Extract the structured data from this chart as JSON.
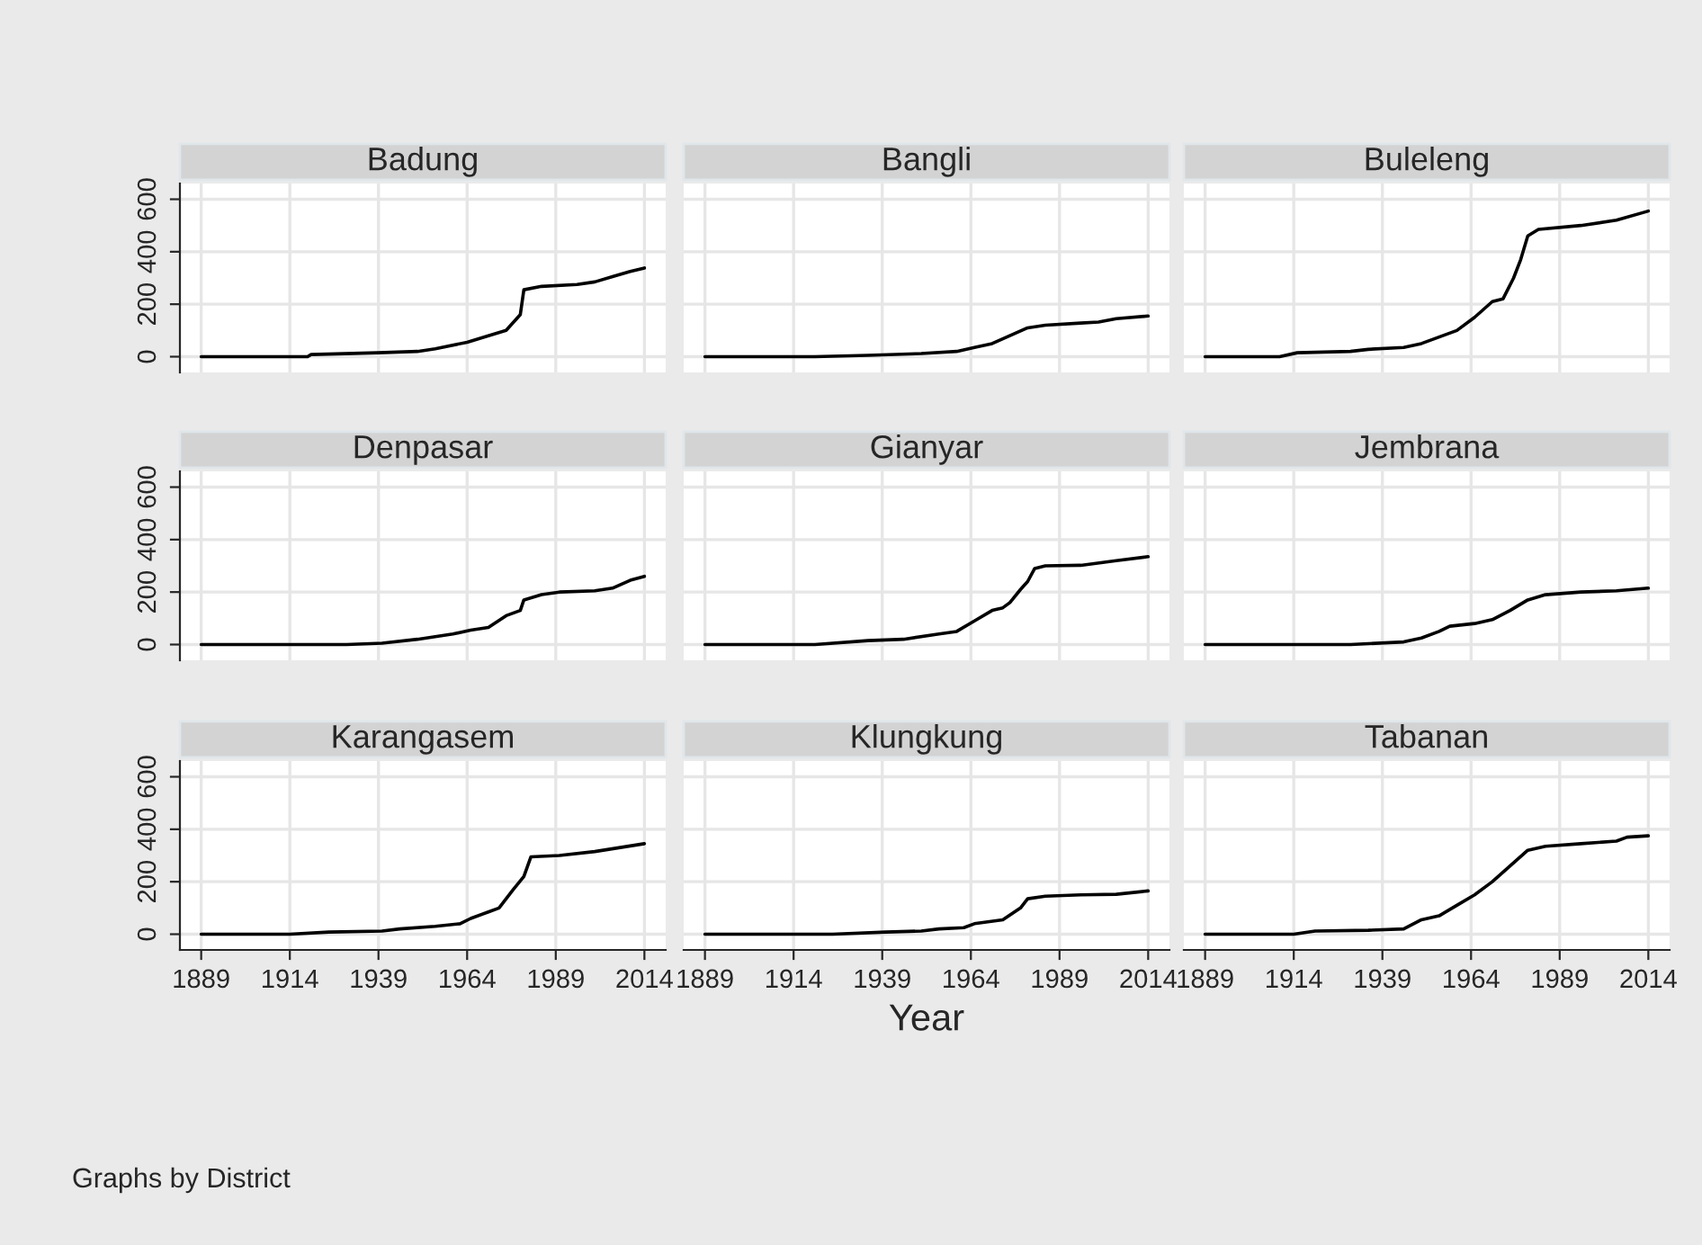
{
  "chart_data": [
    {
      "type": "line",
      "title": "Badung",
      "x": [
        1889,
        1919,
        1920,
        1939,
        1950,
        1955,
        1964,
        1970,
        1975,
        1977,
        1979,
        1980,
        1985,
        1995,
        2000,
        2005,
        2010,
        2014
      ],
      "values": [
        0,
        0,
        8,
        15,
        20,
        30,
        55,
        80,
        100,
        130,
        160,
        255,
        268,
        275,
        285,
        305,
        325,
        338
      ],
      "color": "#000000",
      "xlim": [
        1883,
        2020
      ],
      "ylim": [
        -60,
        660
      ],
      "xticks": [
        1889,
        1914,
        1939,
        1964,
        1989,
        2014
      ],
      "yticks": [
        0,
        200,
        400,
        600
      ],
      "tick_labels": "y",
      "grid": true
    },
    {
      "type": "line",
      "title": "Bangli",
      "x": [
        1889,
        1920,
        1935,
        1950,
        1960,
        1965,
        1970,
        1975,
        1980,
        1985,
        1995,
        2000,
        2005,
        2014
      ],
      "values": [
        0,
        0,
        5,
        12,
        20,
        35,
        50,
        80,
        110,
        120,
        128,
        132,
        145,
        155
      ],
      "color": "#000000",
      "xlim": [
        1883,
        2020
      ],
      "ylim": [
        -60,
        660
      ],
      "xticks": [
        1889,
        1914,
        1939,
        1964,
        1989,
        2014
      ],
      "yticks": [
        0,
        200,
        400,
        600
      ],
      "tick_labels": false,
      "grid": true
    },
    {
      "type": "line",
      "title": "Buleleng",
      "x": [
        1889,
        1910,
        1915,
        1930,
        1935,
        1945,
        1950,
        1955,
        1960,
        1965,
        1970,
        1973,
        1976,
        1978,
        1980,
        1983,
        1995,
        2005,
        2014
      ],
      "values": [
        0,
        0,
        15,
        20,
        28,
        35,
        50,
        75,
        100,
        150,
        210,
        220,
        300,
        370,
        460,
        485,
        500,
        520,
        555
      ],
      "color": "#000000",
      "xlim": [
        1883,
        2020
      ],
      "ylim": [
        -60,
        660
      ],
      "xticks": [
        1889,
        1914,
        1939,
        1964,
        1989,
        2014
      ],
      "yticks": [
        0,
        200,
        400,
        600
      ],
      "tick_labels": false,
      "grid": true
    },
    {
      "type": "line",
      "title": "Denpasar",
      "x": [
        1889,
        1930,
        1940,
        1950,
        1960,
        1965,
        1970,
        1975,
        1979,
        1980,
        1985,
        1990,
        2000,
        2005,
        2010,
        2014
      ],
      "values": [
        0,
        0,
        5,
        20,
        40,
        55,
        65,
        110,
        130,
        170,
        190,
        200,
        205,
        215,
        245,
        260
      ],
      "color": "#000000",
      "xlim": [
        1883,
        2020
      ],
      "ylim": [
        -60,
        660
      ],
      "xticks": [
        1889,
        1914,
        1939,
        1964,
        1989,
        2014
      ],
      "yticks": [
        0,
        200,
        400,
        600
      ],
      "tick_labels": "y",
      "grid": true
    },
    {
      "type": "line",
      "title": "Gianyar",
      "x": [
        1889,
        1920,
        1935,
        1945,
        1955,
        1960,
        1965,
        1970,
        1973,
        1975,
        1978,
        1980,
        1982,
        1985,
        1995,
        2005,
        2014
      ],
      "values": [
        0,
        0,
        15,
        20,
        40,
        50,
        90,
        130,
        140,
        160,
        210,
        240,
        290,
        300,
        302,
        320,
        335
      ],
      "color": "#000000",
      "xlim": [
        1883,
        2020
      ],
      "ylim": [
        -60,
        660
      ],
      "xticks": [
        1889,
        1914,
        1939,
        1964,
        1989,
        2014
      ],
      "yticks": [
        0,
        200,
        400,
        600
      ],
      "tick_labels": false,
      "grid": true
    },
    {
      "type": "line",
      "title": "Jembrana",
      "x": [
        1889,
        1930,
        1945,
        1950,
        1955,
        1958,
        1965,
        1970,
        1975,
        1980,
        1985,
        1995,
        2005,
        2014
      ],
      "values": [
        0,
        0,
        10,
        25,
        50,
        70,
        80,
        95,
        130,
        170,
        190,
        200,
        205,
        215
      ],
      "color": "#000000",
      "xlim": [
        1883,
        2020
      ],
      "ylim": [
        -60,
        660
      ],
      "xticks": [
        1889,
        1914,
        1939,
        1964,
        1989,
        2014
      ],
      "yticks": [
        0,
        200,
        400,
        600
      ],
      "tick_labels": false,
      "grid": true
    },
    {
      "type": "line",
      "title": "Karangasem",
      "x": [
        1889,
        1914,
        1925,
        1940,
        1945,
        1955,
        1962,
        1965,
        1970,
        1973,
        1977,
        1980,
        1982,
        1990,
        2000,
        2014
      ],
      "values": [
        0,
        0,
        8,
        12,
        20,
        30,
        40,
        60,
        85,
        100,
        170,
        220,
        295,
        300,
        315,
        345
      ],
      "color": "#000000",
      "xlim": [
        1883,
        2020
      ],
      "ylim": [
        -60,
        660
      ],
      "xticks": [
        1889,
        1914,
        1939,
        1964,
        1989,
        2014
      ],
      "yticks": [
        0,
        200,
        400,
        600
      ],
      "grid": true,
      "annotations": [
        "Graphs by District"
      ]
    },
    {
      "type": "line",
      "title": "Klungkung",
      "x": [
        1889,
        1925,
        1940,
        1950,
        1955,
        1962,
        1965,
        1973,
        1978,
        1980,
        1985,
        1995,
        2005,
        2014
      ],
      "values": [
        0,
        0,
        8,
        12,
        20,
        25,
        40,
        55,
        100,
        135,
        145,
        150,
        152,
        165
      ],
      "color": "#000000",
      "xlim": [
        1883,
        2020
      ],
      "ylim": [
        -60,
        660
      ],
      "xticks": [
        1889,
        1914,
        1939,
        1964,
        1989,
        2014
      ],
      "yticks": [
        0,
        200,
        400,
        600
      ],
      "tick_labels": "x",
      "grid": true,
      "xlabel": "Year"
    },
    {
      "type": "line",
      "title": "Tabanan",
      "x": [
        1889,
        1914,
        1920,
        1935,
        1945,
        1950,
        1955,
        1960,
        1965,
        1970,
        1975,
        1980,
        1985,
        1995,
        2005,
        2008,
        2014
      ],
      "values": [
        0,
        0,
        12,
        15,
        20,
        55,
        70,
        110,
        150,
        200,
        260,
        320,
        335,
        345,
        355,
        370,
        375
      ],
      "color": "#000000",
      "xlim": [
        1883,
        2020
      ],
      "ylim": [
        -60,
        660
      ],
      "xticks": [
        1889,
        1914,
        1939,
        1964,
        1989,
        2014
      ],
      "yticks": [
        0,
        200,
        400,
        600
      ],
      "tick_labels": "x",
      "grid": true
    }
  ]
}
